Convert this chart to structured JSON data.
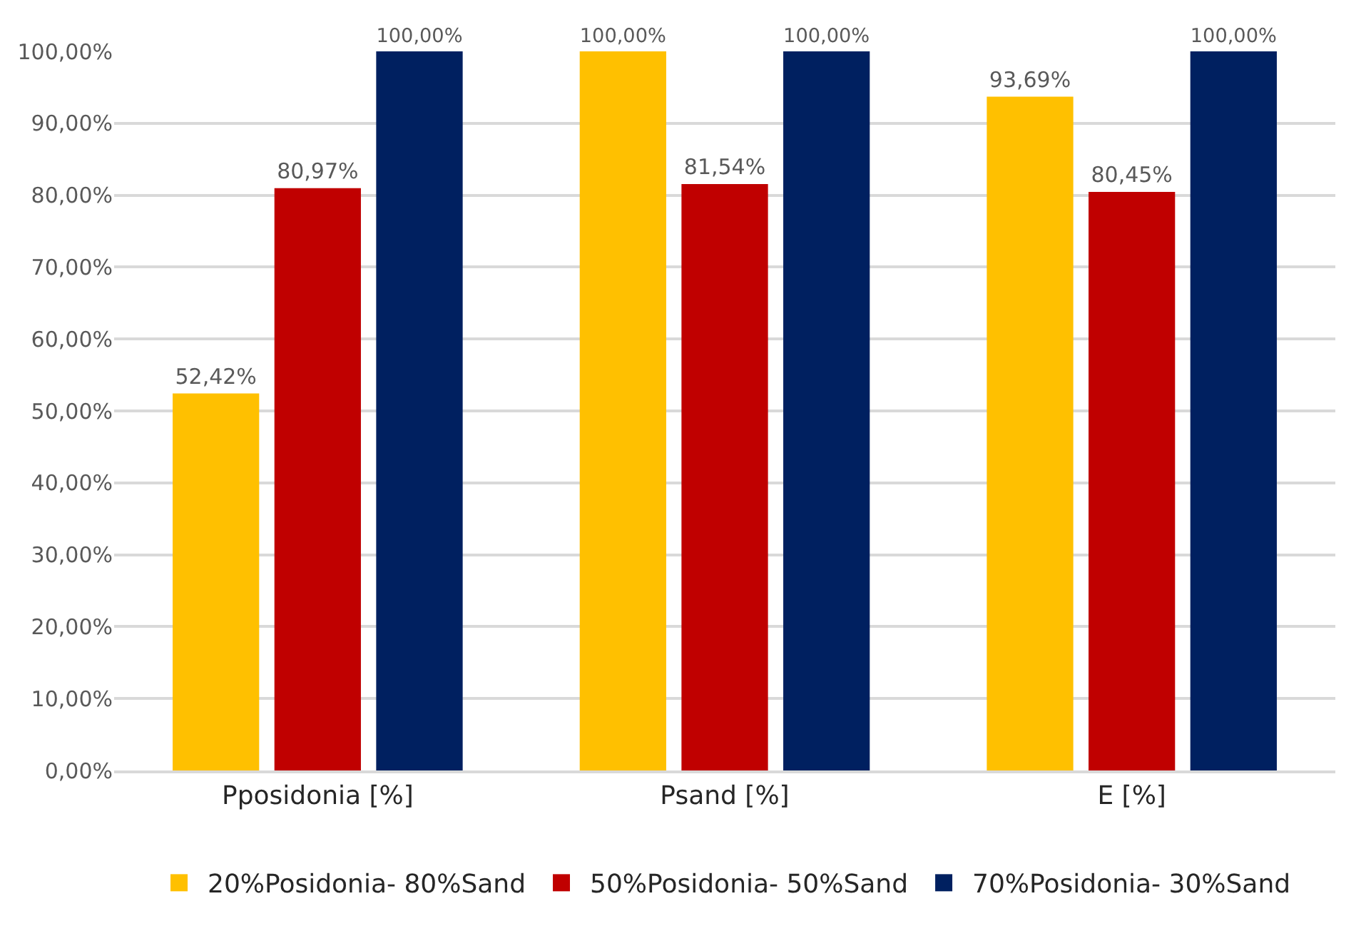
{
  "chart_data": {
    "type": "bar",
    "categories": [
      "Pposidonia [%]",
      "Psand [%]",
      "E [%]"
    ],
    "series": [
      {
        "name": "20%Posidonia- 80%Sand",
        "color": "#ffc000",
        "values": [
          52.42,
          100,
          93.69
        ],
        "value_labels": [
          "52,42%",
          "100,00%",
          "93,69%"
        ]
      },
      {
        "name": "50%Posidonia- 50%Sand",
        "color": "#c00000",
        "values": [
          80.97,
          81.54,
          80.45
        ],
        "value_labels": [
          "80,97%",
          "81,54%",
          "80,45%"
        ]
      },
      {
        "name": "70%Posidonia- 30%Sand",
        "color": "#002060",
        "values": [
          100,
          100,
          100
        ],
        "value_labels": [
          "100,00%",
          "100,00%",
          "100,00%"
        ]
      }
    ],
    "ylim": [
      0,
      100
    ],
    "yticks": [
      {
        "value": 0,
        "label": "0,00%"
      },
      {
        "value": 10,
        "label": "10,00%"
      },
      {
        "value": 20,
        "label": "20,00%"
      },
      {
        "value": 30,
        "label": "30,00%"
      },
      {
        "value": 40,
        "label": "40,00%"
      },
      {
        "value": 50,
        "label": "50,00%"
      },
      {
        "value": 60,
        "label": "60,00%"
      },
      {
        "value": 70,
        "label": "70,00%"
      },
      {
        "value": 80,
        "label": "80,00%"
      },
      {
        "value": 90,
        "label": "90,00%"
      },
      {
        "value": 100,
        "label": "100,00%"
      }
    ],
    "grid": "y",
    "legend": "bottom"
  }
}
